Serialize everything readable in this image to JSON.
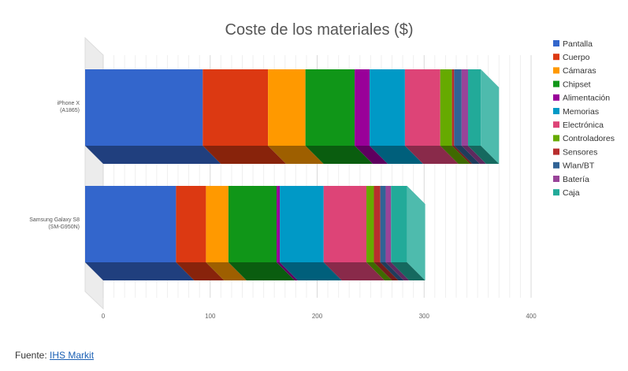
{
  "chart_data": {
    "type": "bar",
    "orientation": "horizontal",
    "stacked": true,
    "style_3d": true,
    "title": "Coste de los materiales ($)",
    "categories": [
      [
        "iPhone X",
        "(A1865)"
      ],
      [
        "Samsung Galaxy S8",
        "(SM-G950N)"
      ]
    ],
    "xlim": [
      0,
      400
    ],
    "xticks": [
      0,
      100,
      200,
      300,
      400
    ],
    "grid": true,
    "legend_position": "right",
    "series": [
      {
        "name": "Pantalla",
        "color": "#3366cc",
        "values": [
          110,
          85
        ]
      },
      {
        "name": "Cuerpo",
        "color": "#dc3912",
        "values": [
          61,
          28
        ]
      },
      {
        "name": "Cámaras",
        "color": "#ff9900",
        "values": [
          35,
          21
        ]
      },
      {
        "name": "Chipset",
        "color": "#109618",
        "values": [
          46,
          45
        ]
      },
      {
        "name": "Alimentación",
        "color": "#990099",
        "values": [
          14,
          3
        ]
      },
      {
        "name": "Memorias",
        "color": "#0099c6",
        "values": [
          33,
          41
        ]
      },
      {
        "name": "Electrónica",
        "color": "#dd4477",
        "values": [
          33,
          40
        ]
      },
      {
        "name": "Controladores",
        "color": "#66aa00",
        "values": [
          11,
          7
        ]
      },
      {
        "name": "Sensores",
        "color": "#b82e2e",
        "values": [
          2,
          6
        ]
      },
      {
        "name": "Wlan/BT",
        "color": "#316395",
        "values": [
          7,
          5
        ]
      },
      {
        "name": "Batería",
        "color": "#994499",
        "values": [
          6,
          5
        ]
      },
      {
        "name": "Caja",
        "color": "#22aa99",
        "values": [
          12,
          15
        ]
      }
    ]
  },
  "source": {
    "prefix": "Fuente:",
    "link_text": "IHS Markit"
  }
}
